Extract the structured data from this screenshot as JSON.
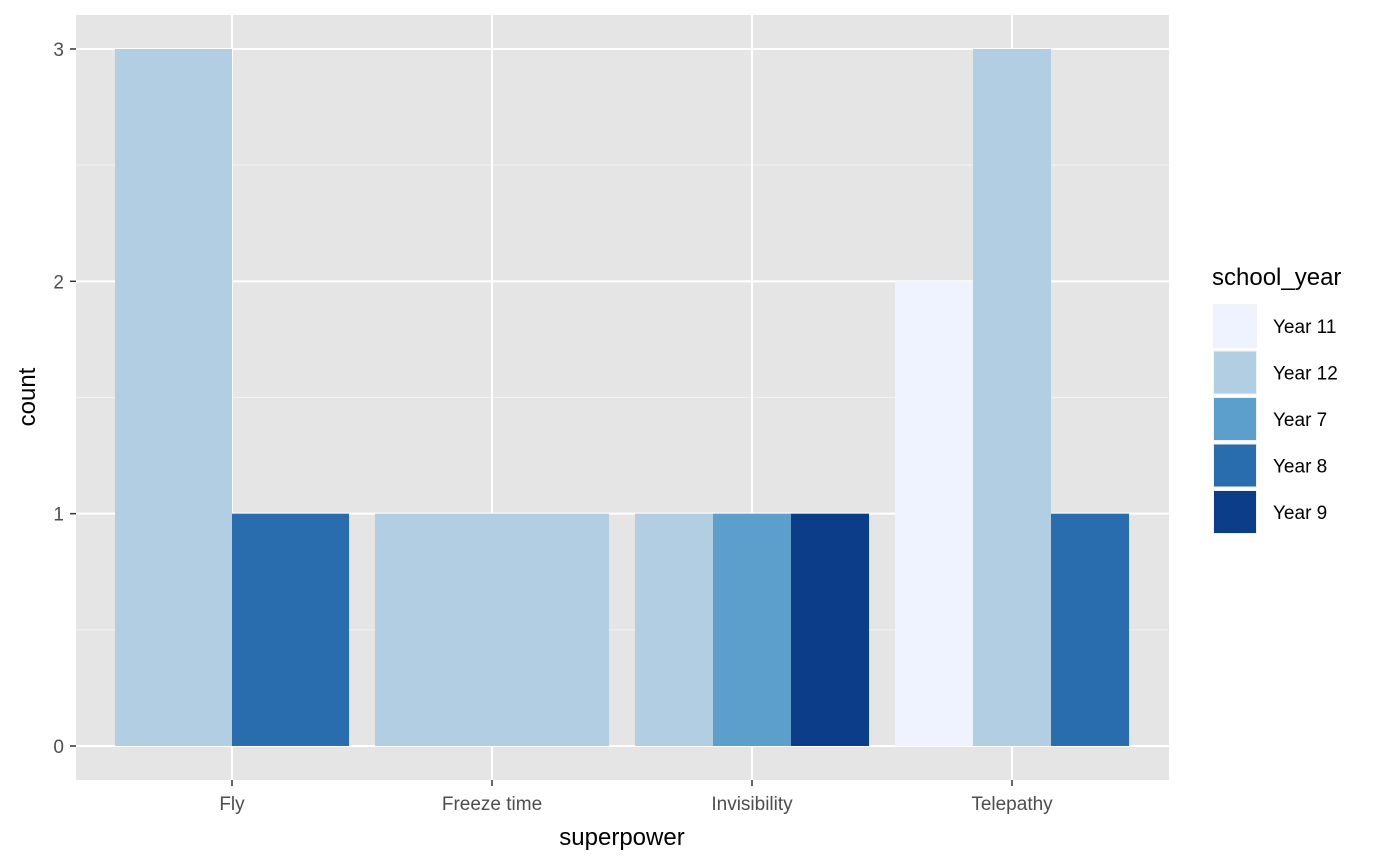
{
  "chart_data": {
    "type": "bar",
    "position": "dodge",
    "categories": [
      "Fly",
      "Freeze time",
      "Invisibility",
      "Telepathy"
    ],
    "xlabel": "superpower",
    "ylabel": "count",
    "ylim": [
      0,
      3
    ],
    "yticks": [
      0,
      1,
      2,
      3
    ],
    "grid": true,
    "legend": {
      "title": "school_year",
      "placement": "right",
      "entries": [
        {
          "name": "Year 11",
          "color": "#EFF3FF"
        },
        {
          "name": "Year 12",
          "color": "#B2CEE3"
        },
        {
          "name": "Year 7",
          "color": "#5C9ECC"
        },
        {
          "name": "Year 8",
          "color": "#2A6DAF"
        },
        {
          "name": "Year 9",
          "color": "#0C3D88"
        }
      ]
    },
    "bars": [
      {
        "category": "Fly",
        "series": [
          "Year 12",
          "Year 8"
        ],
        "values": [
          3,
          1
        ]
      },
      {
        "category": "Freeze time",
        "series": [
          "Year 12"
        ],
        "values": [
          1
        ]
      },
      {
        "category": "Invisibility",
        "series": [
          "Year 12",
          "Year 7",
          "Year 9"
        ],
        "values": [
          1,
          1,
          1
        ]
      },
      {
        "category": "Telepathy",
        "series": [
          "Year 11",
          "Year 12",
          "Year 8"
        ],
        "values": [
          2,
          3,
          1
        ]
      }
    ]
  }
}
